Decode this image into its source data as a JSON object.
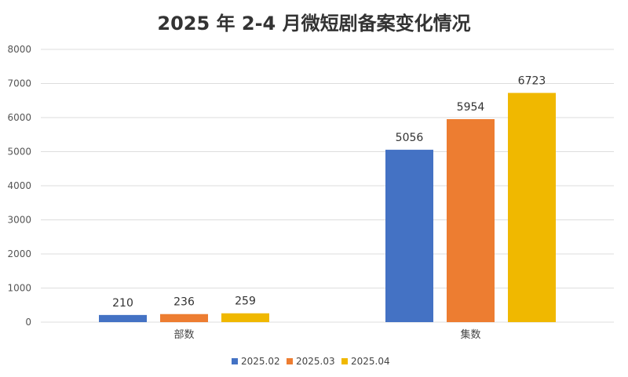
{
  "chart_data": {
    "type": "bar",
    "title": "2025 年 2-4 月微短剧备案变化情况",
    "categories": [
      "部数",
      "集数"
    ],
    "series": [
      {
        "name": "2025.02",
        "color": "#4472C4",
        "values": [
          210,
          5056
        ]
      },
      {
        "name": "2025.03",
        "color": "#ED7D31",
        "values": [
          236,
          5954
        ]
      },
      {
        "name": "2025.04",
        "color": "#F0B800",
        "values": [
          259,
          6723
        ]
      }
    ],
    "ylim": [
      0,
      8000
    ],
    "yticks": [
      0,
      1000,
      2000,
      3000,
      4000,
      5000,
      6000,
      7000,
      8000
    ],
    "xlabel": "",
    "ylabel": "",
    "grid": true,
    "legend": "bottom-center"
  }
}
